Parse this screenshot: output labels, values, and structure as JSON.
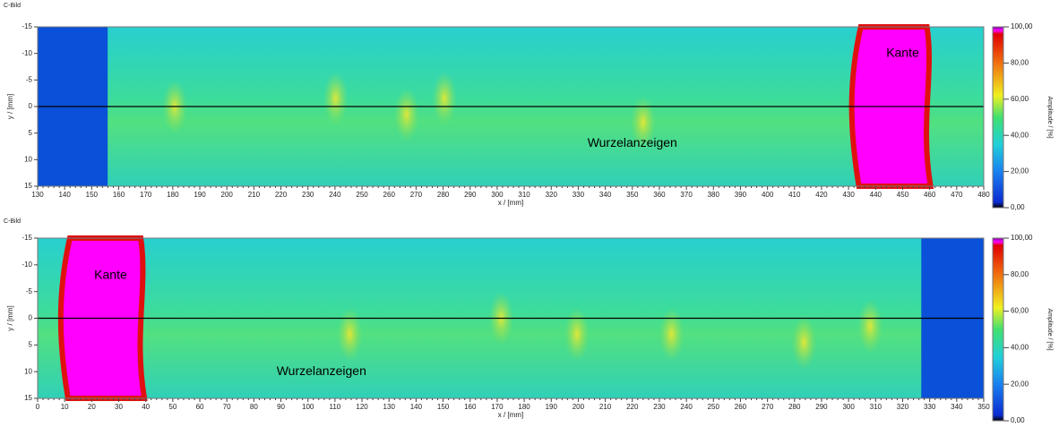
{
  "chart_data": [
    {
      "type": "heatmap",
      "title": "C-Bild",
      "x_label": "x / [mm]",
      "y_label": "y / [mm]",
      "xlim": [
        130,
        480
      ],
      "xticks": [
        130,
        140,
        150,
        160,
        170,
        180,
        190,
        200,
        210,
        220,
        230,
        240,
        250,
        260,
        270,
        280,
        290,
        300,
        310,
        320,
        330,
        340,
        350,
        360,
        370,
        380,
        390,
        400,
        410,
        420,
        430,
        440,
        450,
        460,
        470,
        480
      ],
      "ylim": [
        -15,
        15
      ],
      "yticks": [
        -15,
        -10,
        -5,
        0,
        5,
        10,
        15
      ],
      "colorbar_label": "Amplitude / [%]",
      "clim": [
        0,
        100
      ],
      "colorbar_ticks": [
        {
          "value": 0,
          "label": "0,00"
        },
        {
          "value": 20,
          "label": "20,00"
        },
        {
          "value": 40,
          "label": "40,00"
        },
        {
          "value": 60,
          "label": "60,00"
        },
        {
          "value": 80,
          "label": "80,00"
        },
        {
          "value": 100,
          "label": "100,00"
        }
      ],
      "annotations": [
        {
          "text": "Kante",
          "x": 450,
          "y": -10
        },
        {
          "text": "Wurzelanzeigen",
          "x": 350,
          "y": 7
        }
      ]
    },
    {
      "type": "heatmap",
      "title": "C-Bild",
      "x_label": "x / [mm]",
      "y_label": "y / [mm]",
      "xlim": [
        0,
        350
      ],
      "xticks": [
        0,
        10,
        20,
        30,
        40,
        50,
        60,
        70,
        80,
        90,
        100,
        110,
        120,
        130,
        140,
        150,
        160,
        170,
        180,
        190,
        200,
        210,
        220,
        230,
        240,
        250,
        260,
        270,
        280,
        290,
        300,
        310,
        320,
        330,
        340,
        350
      ],
      "ylim": [
        -15,
        15
      ],
      "yticks": [
        -15,
        -10,
        -5,
        0,
        5,
        10,
        15
      ],
      "colorbar_label": "Amplitude / [%]",
      "clim": [
        0,
        100
      ],
      "colorbar_ticks": [
        {
          "value": 0,
          "label": "0,00"
        },
        {
          "value": 20,
          "label": "20,00"
        },
        {
          "value": 40,
          "label": "40,00"
        },
        {
          "value": 60,
          "label": "60,00"
        },
        {
          "value": 80,
          "label": "80,00"
        },
        {
          "value": 100,
          "label": "100,00"
        }
      ],
      "annotations": [
        {
          "text": "Kante",
          "x": 27,
          "y": -8
        },
        {
          "text": "Wurzelanzeigen",
          "x": 105,
          "y": 10
        }
      ]
    }
  ]
}
